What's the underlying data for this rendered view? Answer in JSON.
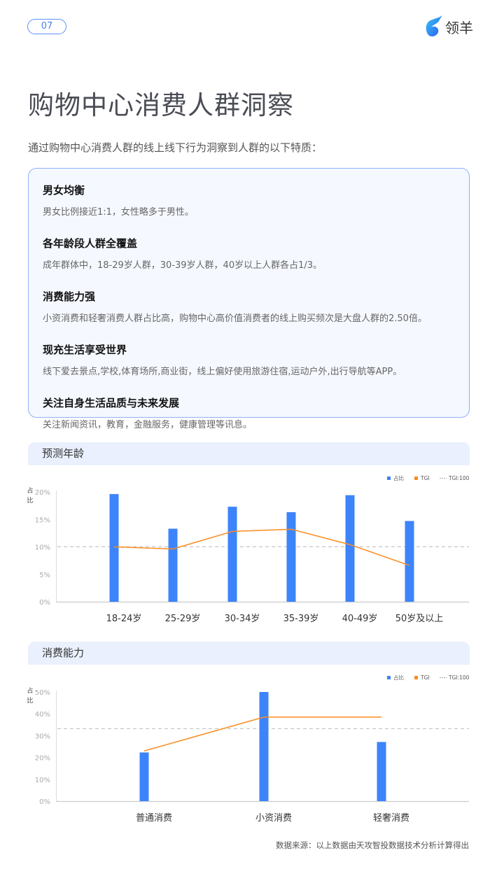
{
  "page_number": "07",
  "logo": {
    "text": "领羊"
  },
  "title": "购物中心消费人群洞察",
  "intro": "通过购物中心消费人群的线上线下行为洞察到人群的以下特质：",
  "features": [
    {
      "heading": "男女均衡",
      "text": "男女比例接近1:1，女性略多于男性。"
    },
    {
      "heading": "各年龄段人群全覆盖",
      "text": "成年群体中，18-29岁人群，30-39岁人群，40岁以上人群各占1/3。"
    },
    {
      "heading": "消费能力强",
      "text": "小资消费和轻奢消费人群占比高，购物中心高价值消费者的线上购买频次是大盘人群的2.50倍。"
    },
    {
      "heading": "现充生活享受世界",
      "text": "线下爱去景点,学校,体育场所,商业街，线上偏好使用旅游住宿,运动户外,出行导航等APP。"
    },
    {
      "heading": "关注自身生活品质与未来发展",
      "text": "关注新闻资讯，教育，金融服务，健康管理等讯息。"
    }
  ],
  "sections": {
    "age": "预测年龄",
    "spending": "消费能力"
  },
  "colors": {
    "bar": "#3d84fb",
    "tgi": "#fb8c1e",
    "baseline": "#bbbbbb",
    "accent": "#5b8ff9"
  },
  "chart_data": [
    {
      "type": "bar",
      "title": "预测年龄",
      "ylabel": "占比",
      "ylim": [
        0,
        20
      ],
      "yticks": [
        "0%",
        "5%",
        "10%",
        "15%",
        "20%"
      ],
      "categories": [
        "18-24岁",
        "25-29岁",
        "30-34岁",
        "35-39岁",
        "40-49岁",
        "50岁及以上"
      ],
      "legend": [
        "占比",
        "TGI",
        "TGI:100"
      ],
      "legend_position": "top-right",
      "series": [
        {
          "name": "占比",
          "type": "bar",
          "values": [
            19.6,
            13.3,
            17.3,
            16.3,
            19.4,
            14.7
          ]
        },
        {
          "name": "TGI",
          "type": "line",
          "values": [
            10.0,
            9.6,
            12.8,
            13.2,
            10.4,
            6.6
          ]
        }
      ],
      "reference_line": {
        "name": "TGI:100",
        "value": 10
      }
    },
    {
      "type": "bar",
      "title": "消费能力",
      "ylabel": "占比",
      "ylim": [
        0,
        50
      ],
      "yticks": [
        "0%",
        "10%",
        "20%",
        "30%",
        "40%",
        "50%"
      ],
      "categories": [
        "普通消费",
        "小资消费",
        "轻奢消费"
      ],
      "legend": [
        "占比",
        "TGI",
        "TGI:100"
      ],
      "legend_position": "top-right",
      "series": [
        {
          "name": "占比",
          "type": "bar",
          "values": [
            22.3,
            50,
            27.1
          ]
        },
        {
          "name": "TGI",
          "type": "line",
          "values": [
            23,
            38.5,
            38.5
          ]
        }
      ],
      "reference_line": {
        "name": "TGI:100",
        "value": 33.2
      }
    }
  ],
  "source": "数据来源：以上数据由天攻智投数据技术分析计算得出"
}
